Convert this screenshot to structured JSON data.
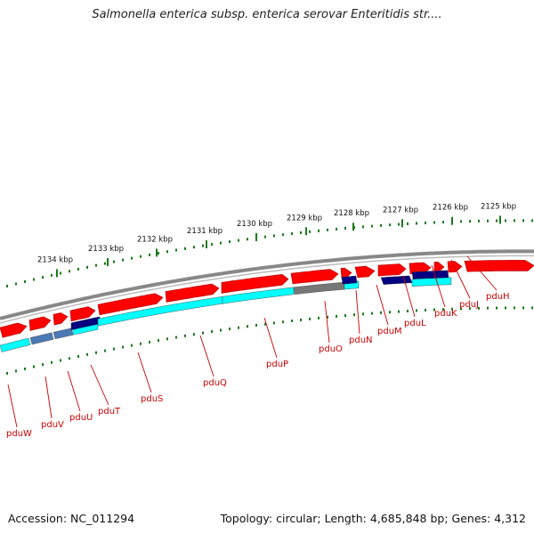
{
  "title": "Salmonella enterica subsp. enterica serovar Enteritidis str....",
  "footer": {
    "accession": "Accession: NC_011294",
    "summary": "Topology: circular; Length: 4,685,848 bp; Genes: 4,312"
  },
  "colors": {
    "backbone": "#888888",
    "forward_cds": "#ff0000",
    "feature_navy": "#000080",
    "feature_cyan": "#00ffff",
    "feature_gray": "#777777",
    "feature_steel": "#4a7ab5",
    "ticks": "#1a7a1a",
    "labels": "#cc0000"
  },
  "ruler": {
    "unit": "kbp",
    "ticks": [
      {
        "kbp": 2125,
        "label": "2125 kbp"
      },
      {
        "kbp": 2126,
        "label": "2126 kbp"
      },
      {
        "kbp": 2127,
        "label": "2127 kbp"
      },
      {
        "kbp": 2128,
        "label": "2128 kbp"
      },
      {
        "kbp": 2129,
        "label": "2129 kbp"
      },
      {
        "kbp": 2130,
        "label": "2130 kbp"
      },
      {
        "kbp": 2131,
        "label": "2131 kbp"
      },
      {
        "kbp": 2132,
        "label": "2132 kbp"
      },
      {
        "kbp": 2133,
        "label": "2133 kbp"
      },
      {
        "kbp": 2134,
        "label": "2134 kbp"
      }
    ]
  },
  "genes": [
    {
      "name": "pduH"
    },
    {
      "name": "pduJ"
    },
    {
      "name": "pduK"
    },
    {
      "name": "pduL"
    },
    {
      "name": "pduM"
    },
    {
      "name": "pduN"
    },
    {
      "name": "pduO"
    },
    {
      "name": "pduP"
    },
    {
      "name": "pduQ"
    },
    {
      "name": "pduS"
    },
    {
      "name": "pduT"
    },
    {
      "name": "pduU"
    },
    {
      "name": "pduV"
    },
    {
      "name": "pduW"
    }
  ]
}
